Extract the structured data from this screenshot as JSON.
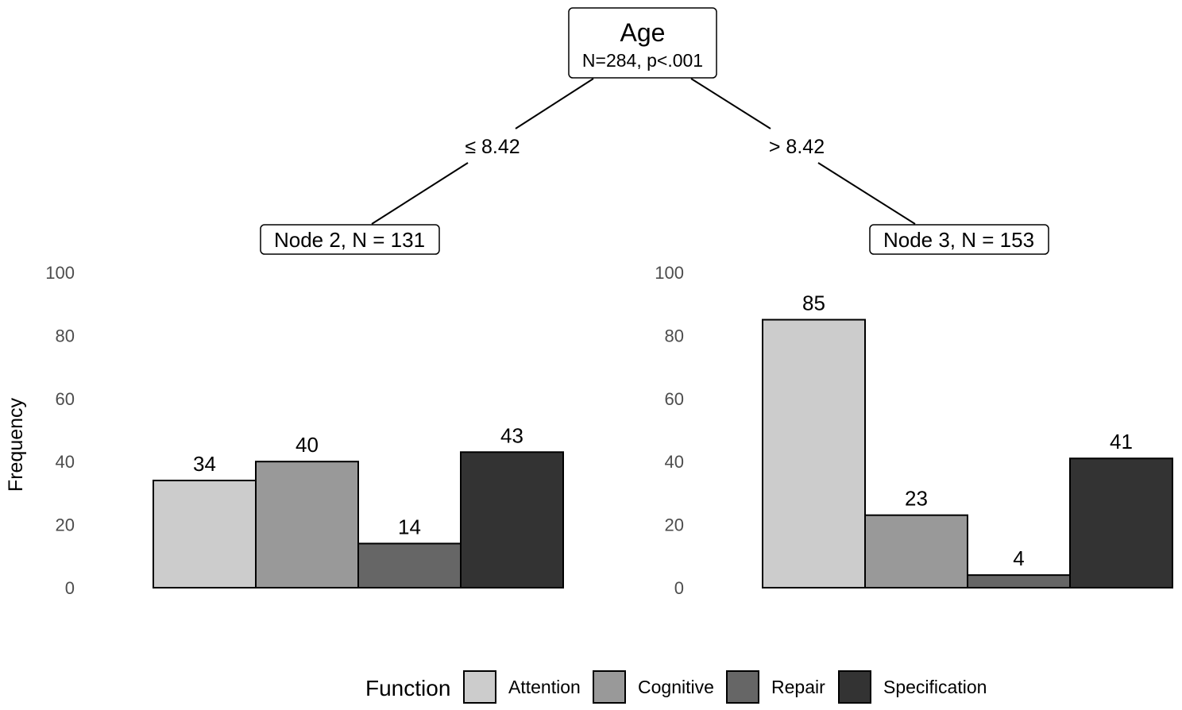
{
  "tree": {
    "root": {
      "title": "Age",
      "stats": "N=284, p<.001"
    },
    "split_left": "≤ 8.42",
    "split_right": "> 8.42",
    "node_left": "Node 2, N = 131",
    "node_right": "Node 3, N = 153"
  },
  "chart_data": [
    {
      "type": "bar",
      "title": "Node 2, N = 131",
      "categories": [
        "Attention",
        "Cognitive",
        "Repair",
        "Specification"
      ],
      "values": [
        34,
        40,
        14,
        43
      ],
      "ylabel": "Frequency",
      "ylim": [
        0,
        100
      ],
      "yticks": [
        "0",
        "20",
        "40",
        "60",
        "80",
        "100"
      ],
      "grid": false
    },
    {
      "type": "bar",
      "title": "Node 3, N = 153",
      "categories": [
        "Attention",
        "Cognitive",
        "Repair",
        "Specification"
      ],
      "values": [
        85,
        23,
        4,
        41
      ],
      "ylabel": "",
      "ylim": [
        0,
        100
      ],
      "yticks": [
        "0",
        "20",
        "40",
        "60",
        "80",
        "100"
      ],
      "grid": false
    }
  ],
  "axis": {
    "ylabel": "Frequency"
  },
  "legend": {
    "title": "Function",
    "placement": "bottom",
    "items": [
      {
        "label": "Attention",
        "color": "#cccccc"
      },
      {
        "label": "Cognitive",
        "color": "#999999"
      },
      {
        "label": "Repair",
        "color": "#666666"
      },
      {
        "label": "Specification",
        "color": "#333333"
      }
    ]
  },
  "colors": {
    "Attention": "#cccccc",
    "Cognitive": "#999999",
    "Repair": "#666666",
    "Specification": "#333333"
  }
}
